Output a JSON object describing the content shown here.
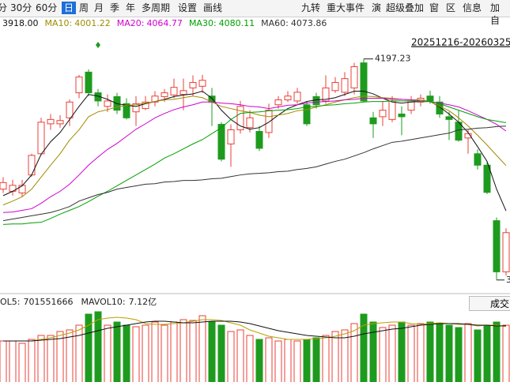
{
  "toolbar": {
    "left": [
      "分",
      "30分",
      "60分",
      "日",
      "周",
      "月",
      "季",
      "年",
      "多周期",
      "设置",
      "画线"
    ],
    "selected": "日",
    "right": [
      "九转",
      "重大事件",
      "演",
      "超级叠加",
      "窗",
      "区",
      "信息",
      "加自"
    ]
  },
  "chart_data": {
    "type": "candlestick",
    "range_label": "20251216-20260325",
    "ylim": [
      3766,
      4233
    ],
    "up_color": "#e8403a",
    "down_color": "#1e9b1e",
    "ohlc": {
      "open": [
        3958,
        3954,
        3951,
        3984,
        4023,
        4078,
        4078,
        4089,
        4135,
        4173,
        4135,
        4110,
        4128,
        4115,
        4100,
        4106,
        4118,
        4128,
        4131,
        4132,
        4144,
        4147,
        4129,
        4077,
        4041,
        4067,
        4071,
        4064,
        4062,
        4113,
        4122,
        4120,
        4113,
        4128,
        4120,
        4139,
        4136,
        4144,
        4190,
        4089,
        4091,
        4086,
        4096,
        4103,
        4118,
        4129,
        4118,
        4091,
        4081,
        4052,
        4023,
        4002,
        3900,
        3806
      ],
      "high": [
        3980,
        3975,
        3975,
        4023,
        4089,
        4096,
        4094,
        4123,
        4168,
        4178,
        4142,
        4132,
        4135,
        4125,
        4129,
        4129,
        4138,
        4142,
        4161,
        4161,
        4167,
        4168,
        4144,
        4081,
        4077,
        4120,
        4103,
        4074,
        4115,
        4129,
        4138,
        4144,
        4120,
        4135,
        4167,
        4164,
        4173,
        4190,
        4197.23,
        4100,
        4120,
        4129,
        4110,
        4129,
        4132,
        4139,
        4129,
        4100,
        4103,
        4067,
        4031,
        4009,
        3906,
        3886
      ],
      "low": [
        3951,
        3946,
        3944,
        3981,
        4020,
        4067,
        4071,
        4074,
        4125,
        4129,
        4110,
        4100,
        4096,
        4086,
        4074,
        4103,
        4110,
        4118,
        4125,
        4103,
        4129,
        4135,
        4074,
        4009,
        3999,
        4060,
        4062,
        4028,
        4052,
        4106,
        4118,
        4115,
        4074,
        4106,
        4115,
        4135,
        4129,
        4132,
        4118,
        4052,
        4074,
        4081,
        4057,
        4096,
        4110,
        4115,
        4089,
        4048,
        4045,
        4023,
        3994,
        3949,
        3791,
        3799
      ],
      "close": [
        3970,
        3965,
        3965,
        4020,
        4081,
        4086,
        4084,
        4118,
        4164,
        4135,
        4120,
        4120,
        4103,
        4089,
        4115,
        4118,
        4129,
        4135,
        4145,
        4139,
        4154,
        4158,
        4118,
        4013,
        4067,
        4110,
        4089,
        4033,
        4103,
        4122,
        4129,
        4136,
        4078,
        4113,
        4144,
        4154,
        4161,
        4183,
        4120,
        4078,
        4103,
        4120,
        4091,
        4120,
        4125,
        4120,
        4096,
        4086,
        4048,
        4060,
        4002,
        3952,
        3806,
        3878
      ]
    },
    "series": [
      {
        "color": "#111111",
        "last_label": "3918.00",
        "values": [
          3946,
          3954,
          3964,
          3984,
          4022,
          4045,
          4062,
          4086,
          4110,
          4132,
          4129,
          4123,
          4115,
          4112,
          4110,
          4115,
          4119,
          4123,
          4128,
          4131,
          4133,
          4138,
          4125,
          4103,
          4086,
          4074,
          4068,
          4071,
          4081,
          4094,
          4106,
          4113,
          4119,
          4122,
          4123,
          4126,
          4132,
          4138,
          4138,
          4133,
          4125,
          4118,
          4116,
          4118,
          4119,
          4119,
          4109,
          4096,
          4081,
          4062,
          4036,
          4009,
          3958,
          3918
        ]
      },
      {
        "name": "MA10:",
        "color": "#a08c00",
        "values": [
          3929,
          3936,
          3944,
          3958,
          3980,
          4002,
          4023,
          4048,
          4067,
          4091,
          4100,
          4104,
          4109,
          4112,
          4113,
          4116,
          4119,
          4122,
          4123,
          4126,
          4129,
          4126,
          4118,
          4110,
          4106,
          4102,
          4099,
          4094,
          4091,
          4094,
          4097,
          4102,
          4104,
          4109,
          4113,
          4118,
          4122,
          4126,
          4129,
          4128,
          4126,
          4125,
          4123,
          4122,
          4122,
          4119,
          4110,
          4102,
          4089,
          4074,
          4057,
          4039,
          4020,
          4001.22
        ]
      },
      {
        "name": "MA20:",
        "color": "#d000d0",
        "values": [
          3915,
          3916,
          3919,
          3922,
          3932,
          3944,
          3954,
          3967,
          3984,
          4002,
          4017,
          4031,
          4042,
          4055,
          4068,
          4078,
          4089,
          4097,
          4104,
          4109,
          4113,
          4118,
          4118,
          4116,
          4115,
          4113,
          4110,
          4109,
          4106,
          4109,
          4112,
          4113,
          4116,
          4118,
          4119,
          4120,
          4122,
          4123,
          4125,
          4125,
          4125,
          4123,
          4123,
          4122,
          4120,
          4119,
          4116,
          4113,
          4109,
          4102,
          4094,
          4086,
          4077,
          4064.77
        ]
      },
      {
        "name": "MA30:",
        "color": "#00a000",
        "values": [
          3893,
          3894,
          3894,
          3896,
          3897,
          3904,
          3912,
          3919,
          3926,
          3935,
          3945,
          3954,
          3964,
          3974,
          3984,
          3994,
          4004,
          4015,
          4023,
          4032,
          4041,
          4049,
          4060,
          4071,
          4086,
          4097,
          4099,
          4100,
          4102,
          4103,
          4104,
          4106,
          4109,
          4110,
          4112,
          4113,
          4115,
          4116,
          4118,
          4119,
          4119,
          4120,
          4120,
          4120,
          4119,
          4119,
          4115,
          4109,
          4103,
          4097,
          4091,
          4086,
          4083,
          4080.11
        ]
      },
      {
        "name": "MA60:",
        "color": "#333333",
        "values": [
          3900,
          3903,
          3906,
          3909,
          3912,
          3915,
          3920,
          3926,
          3936,
          3942,
          3948,
          3952,
          3958,
          3961,
          3964,
          3967,
          3968,
          3971,
          3972,
          3974,
          3974,
          3975,
          3977,
          3978,
          3981,
          3984,
          3986,
          3987,
          3988,
          3990,
          3991,
          3994,
          3996,
          3999,
          4004,
          4009,
          4013,
          4019,
          4025,
          4032,
          4038,
          4044,
          4046,
          4049,
          4052,
          4055,
          4058,
          4061,
          4067,
          4068,
          4070,
          4071,
          4073,
          4073.86
        ]
      }
    ],
    "volume": {
      "ylim": [
        0,
        960000000
      ],
      "values": [
        520000000,
        520000000,
        490000000,
        540000000,
        590000000,
        590000000,
        640000000,
        660000000,
        720000000,
        860000000,
        890000000,
        720000000,
        760000000,
        720000000,
        700000000,
        720000000,
        760000000,
        720000000,
        760000000,
        790000000,
        780000000,
        840000000,
        760000000,
        720000000,
        640000000,
        660000000,
        590000000,
        540000000,
        560000000,
        520000000,
        540000000,
        520000000,
        540000000,
        560000000,
        590000000,
        640000000,
        660000000,
        740000000,
        860000000,
        760000000,
        690000000,
        720000000,
        760000000,
        720000000,
        740000000,
        760000000,
        740000000,
        720000000,
        690000000,
        740000000,
        660000000,
        720000000,
        760000000,
        720000000
      ],
      "series": [
        {
          "name": "OL5:",
          "color": "#b8a000",
          "values": [
            520000000,
            520000000,
            520000000,
            520000000,
            540000000,
            560000000,
            590000000,
            620000000,
            660000000,
            720000000,
            790000000,
            810000000,
            820000000,
            810000000,
            790000000,
            740000000,
            730000000,
            730000000,
            740000000,
            750000000,
            770000000,
            790000000,
            790000000,
            780000000,
            750000000,
            720000000,
            660000000,
            620000000,
            580000000,
            560000000,
            540000000,
            540000000,
            540000000,
            550000000,
            560000000,
            580000000,
            610000000,
            650000000,
            720000000,
            740000000,
            750000000,
            760000000,
            760000000,
            740000000,
            730000000,
            740000000,
            750000000,
            740000000,
            730000000,
            730000000,
            710000000,
            720000000,
            720000000,
            701551666
          ]
        },
        {
          "name": "MAVOL10:",
          "color": "#111111",
          "last_label": "7.12亿",
          "values": [
            520000000,
            520000000,
            520000000,
            520000000,
            530000000,
            540000000,
            550000000,
            570000000,
            590000000,
            620000000,
            650000000,
            680000000,
            700000000,
            720000000,
            740000000,
            760000000,
            770000000,
            770000000,
            760000000,
            750000000,
            750000000,
            760000000,
            770000000,
            770000000,
            770000000,
            760000000,
            740000000,
            710000000,
            680000000,
            650000000,
            630000000,
            610000000,
            590000000,
            580000000,
            570000000,
            560000000,
            560000000,
            580000000,
            610000000,
            630000000,
            650000000,
            670000000,
            680000000,
            700000000,
            720000000,
            730000000,
            740000000,
            740000000,
            740000000,
            730000000,
            720000000,
            720000000,
            710000000,
            712000000
          ]
        }
      ]
    }
  },
  "volume_button": "成交"
}
